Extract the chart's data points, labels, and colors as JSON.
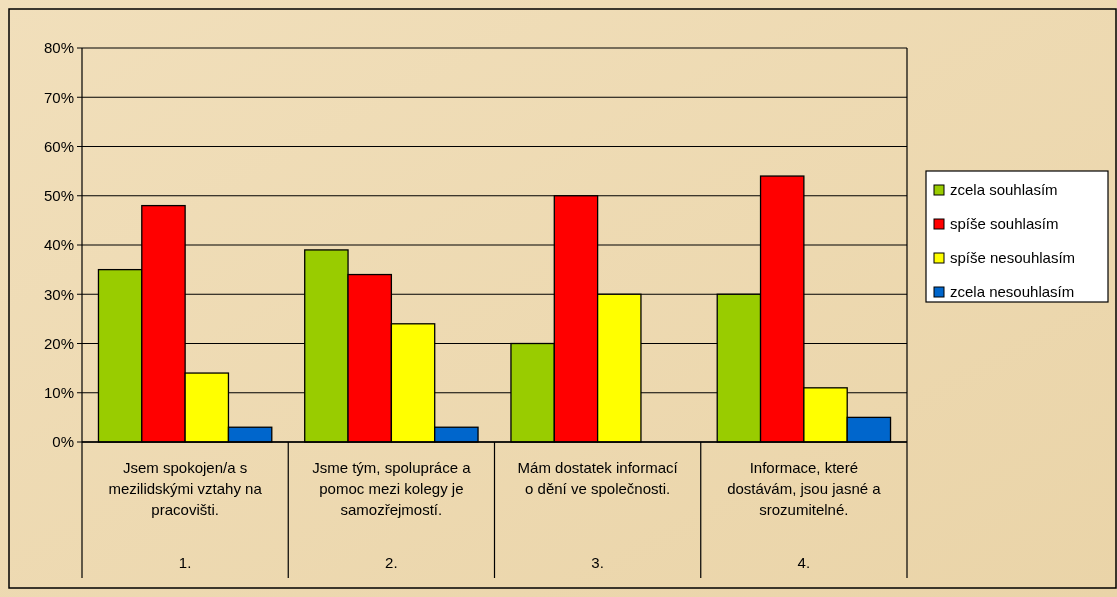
{
  "chart_data": {
    "type": "bar",
    "categories": [
      "Jsem spokojen/a s mezilidskými vztahy na pracovišti.",
      "Jsme tým, spolupráce a pomoc mezi kolegy je samozřejmostí.",
      "Mám dostatek informací o dění ve společnosti.",
      "Informace, které dostávám, jsou jasné a srozumitelné."
    ],
    "series": [
      {
        "name": "zcela souhlasím",
        "color": "#99cc00",
        "values": [
          35,
          39,
          20,
          30
        ]
      },
      {
        "name": "spíše souhlasím",
        "color": "#ff0000",
        "values": [
          48,
          34,
          50,
          54
        ]
      },
      {
        "name": "spíše nesouhlasím",
        "color": "#ffff00",
        "values": [
          14,
          24,
          30,
          11
        ]
      },
      {
        "name": "zcela nesouhlasím",
        "color": "#0066cc",
        "values": [
          3,
          3,
          null,
          5
        ]
      }
    ],
    "ylim": [
      0,
      80
    ],
    "yticks": [
      {
        "value": 0,
        "label": "0%"
      },
      {
        "value": 10,
        "label": "10%"
      },
      {
        "value": 20,
        "label": "20%"
      },
      {
        "value": 30,
        "label": "30%"
      },
      {
        "value": 40,
        "label": "40%"
      },
      {
        "value": 50,
        "label": "50%"
      },
      {
        "value": 60,
        "label": "60%"
      },
      {
        "value": 70,
        "label": "70%"
      },
      {
        "value": 80,
        "label": "80%"
      }
    ],
    "grid": "y",
    "legend": "right",
    "annotations": [
      "1.",
      "2.",
      "3.",
      "4."
    ]
  }
}
